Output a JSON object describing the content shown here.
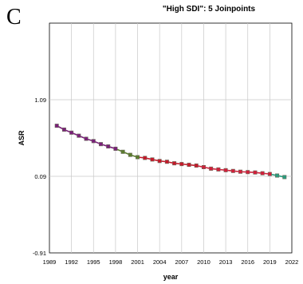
{
  "panel_label": "C",
  "chart_data": {
    "type": "line",
    "title": "\"High SDI\": 5 Joinpoints",
    "xlabel": "year",
    "ylabel": "ASR",
    "xlim": [
      1989,
      2022
    ],
    "ylim": [
      -0.91,
      2.09
    ],
    "x_ticks": [
      1989,
      1992,
      1995,
      1998,
      2001,
      2004,
      2007,
      2010,
      2013,
      2016,
      2019,
      2022
    ],
    "y_ticks": [
      -0.91,
      0.09,
      1.09
    ],
    "grid": true,
    "x": [
      1990,
      1991,
      1992,
      1993,
      1994,
      1995,
      1996,
      1997,
      1998,
      1999,
      2000,
      2001,
      2002,
      2003,
      2004,
      2005,
      2006,
      2007,
      2008,
      2009,
      2010,
      2011,
      2012,
      2013,
      2014,
      2015,
      2016,
      2017,
      2018,
      2019,
      2020,
      2021
    ],
    "observed": [
      0.75,
      0.7,
      0.66,
      0.62,
      0.58,
      0.55,
      0.51,
      0.48,
      0.45,
      0.41,
      0.37,
      0.34,
      0.33,
      0.31,
      0.29,
      0.28,
      0.26,
      0.25,
      0.24,
      0.23,
      0.21,
      0.19,
      0.18,
      0.17,
      0.16,
      0.15,
      0.145,
      0.14,
      0.13,
      0.12,
      0.1,
      0.08
    ],
    "segments": [
      {
        "x_start": 1990,
        "x_end": 1998,
        "color": "#7a1f7a"
      },
      {
        "x_start": 1998,
        "x_end": 2001,
        "color": "#5b7d2e"
      },
      {
        "x_start": 2001,
        "x_end": 2009,
        "color": "#c8182a"
      },
      {
        "x_start": 2009,
        "x_end": 2019,
        "color": "#d41e3a"
      },
      {
        "x_start": 2019,
        "x_end": 2021,
        "color": "#2a9d7f"
      }
    ],
    "marker_color": "#6a6a5a"
  }
}
